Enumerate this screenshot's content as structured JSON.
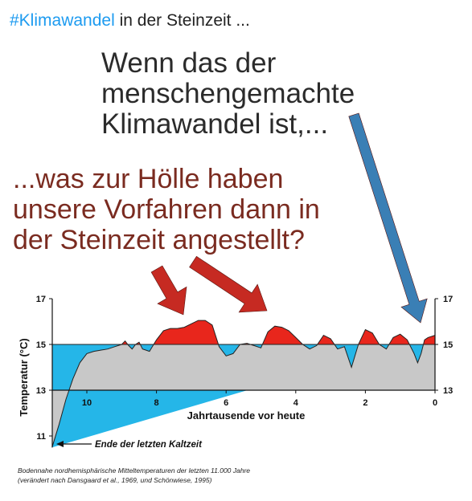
{
  "tweet": {
    "hashtag": "#Klimawandel",
    "text": " in der Steinzeit ..."
  },
  "headline": {
    "lines": [
      "Wenn das der",
      "menschengemachte",
      "Klimawandel ist,..."
    ]
  },
  "question": {
    "lines": [
      "...was zur Hölle haben",
      "unsere Vorfahren dann in",
      "der Steinzeit angestellt?"
    ]
  },
  "caption": {
    "lines": [
      "Bodennahe nordhemisphärische Mitteltemperaturen der letzten 11.000 Jahre",
      "(verändert nach Dansgaard et al., 1969, und Schönwiese, 1995)"
    ]
  },
  "colors": {
    "warm": "#e8261c",
    "cold": "#25b6e8",
    "neutral": "#c8c8c8",
    "arrow_red": "#c62a22",
    "arrow_blue": "#3a7fb5"
  },
  "chart_data": {
    "type": "area",
    "xlabel": "Jahrtausende vor heute",
    "ylabel": "Temperatur (°C)",
    "xlim": [
      11.5,
      0
    ],
    "ylim": [
      11,
      17
    ],
    "x_ticks": [
      10,
      8,
      6,
      4,
      2,
      0
    ],
    "y_ticks_left": [
      17,
      15,
      13,
      11
    ],
    "y_ticks_right": [
      17,
      15,
      13
    ],
    "baseline": 15,
    "annotation": "Ende der letzten Kaltzeit",
    "series": [
      {
        "x": [
          11.0,
          10.8,
          10.6,
          10.4,
          10.2,
          10.0,
          9.8,
          9.6,
          9.4,
          9.2,
          9.0,
          8.9,
          8.8,
          8.7,
          8.6,
          8.5,
          8.4,
          8.3,
          8.2,
          8.0,
          7.8,
          7.6,
          7.4,
          7.2,
          7.0,
          6.8,
          6.6,
          6.4,
          6.2,
          6.0,
          5.8,
          5.6,
          5.4,
          5.2,
          5.0,
          4.8,
          4.6,
          4.4,
          4.2,
          4.0,
          3.8,
          3.6,
          3.4,
          3.2,
          3.0,
          2.8,
          2.6,
          2.4,
          2.2,
          2.0,
          1.8,
          1.6,
          1.4,
          1.2,
          1.0,
          0.8,
          0.6,
          0.5,
          0.4,
          0.3,
          0.2,
          0.0
        ],
        "y": [
          10.5,
          11.5,
          12.6,
          13.5,
          14.2,
          14.6,
          14.7,
          14.75,
          14.8,
          14.9,
          15.0,
          15.15,
          14.95,
          14.8,
          15.0,
          15.1,
          14.8,
          14.75,
          14.7,
          15.2,
          15.6,
          15.7,
          15.7,
          15.75,
          15.9,
          16.05,
          16.05,
          15.85,
          14.9,
          14.5,
          14.6,
          15.0,
          15.05,
          14.95,
          14.85,
          15.55,
          15.8,
          15.75,
          15.6,
          15.3,
          15.0,
          14.8,
          14.95,
          15.4,
          15.25,
          14.8,
          14.9,
          14.0,
          15.0,
          15.65,
          15.5,
          15.0,
          14.8,
          15.3,
          15.45,
          15.2,
          14.6,
          14.2,
          14.6,
          15.2,
          15.3,
          15.4
        ]
      }
    ]
  }
}
